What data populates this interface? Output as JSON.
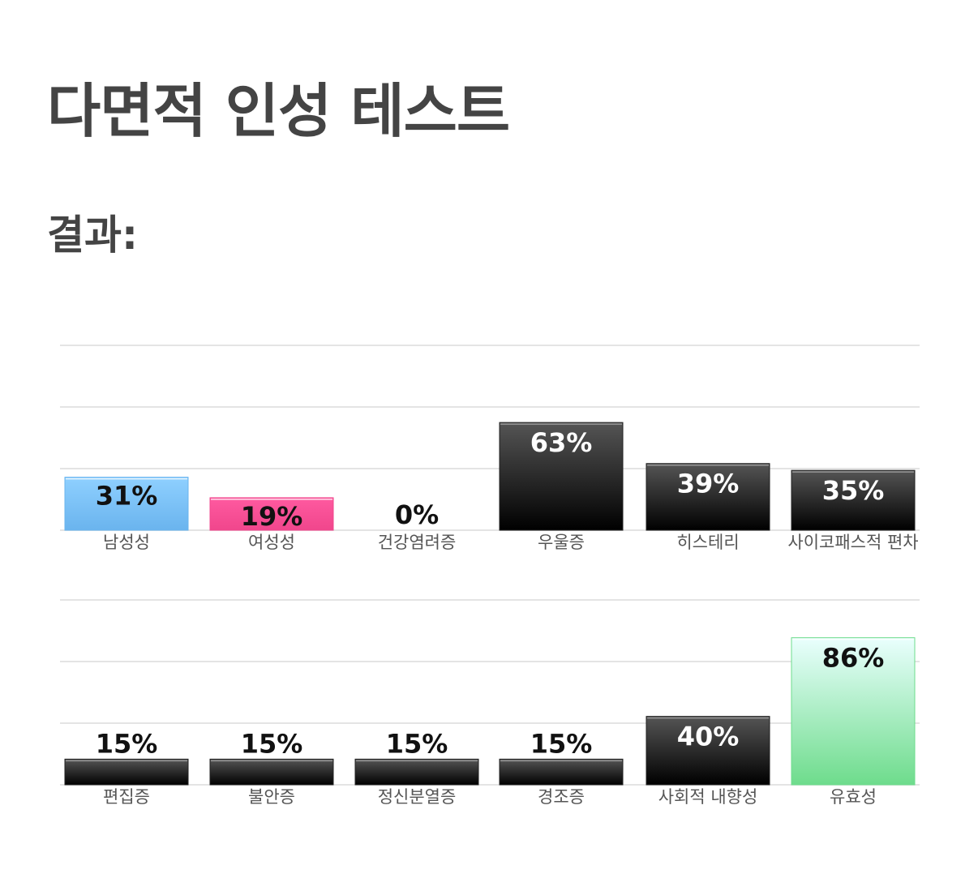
{
  "title": "다면적 인성 테스트",
  "result_heading": "결과:",
  "colors": {
    "male": [
      "#8fd0ff",
      "#6ab4ee"
    ],
    "female": [
      "#ff5aa0",
      "#f0468c"
    ],
    "dark": [
      "#555555",
      "#000000"
    ],
    "valid": [
      "#eafffe",
      "#6edc8c"
    ]
  },
  "chart_data": [
    {
      "type": "bar",
      "categories": [
        "남성성",
        "여성성",
        "건강염려증",
        "우울증",
        "히스테리",
        "사이코패스적 편차"
      ],
      "values": [
        31,
        19,
        0,
        63,
        39,
        35
      ],
      "value_labels": [
        "31%",
        "19%",
        "0%",
        "63%",
        "39%",
        "35%"
      ],
      "colors": [
        "male",
        "female",
        "dark",
        "dark",
        "dark",
        "dark"
      ],
      "ylim": [
        0,
        100
      ],
      "grid": true
    },
    {
      "type": "bar",
      "categories": [
        "편집증",
        "불안증",
        "정신분열증",
        "경조증",
        "사회적 내향성",
        "유효성"
      ],
      "values": [
        15,
        15,
        15,
        15,
        40,
        86
      ],
      "value_labels": [
        "15%",
        "15%",
        "15%",
        "15%",
        "40%",
        "86%"
      ],
      "colors": [
        "dark",
        "dark",
        "dark",
        "dark",
        "dark",
        "valid"
      ],
      "ylim": [
        0,
        100
      ],
      "grid": true
    }
  ]
}
